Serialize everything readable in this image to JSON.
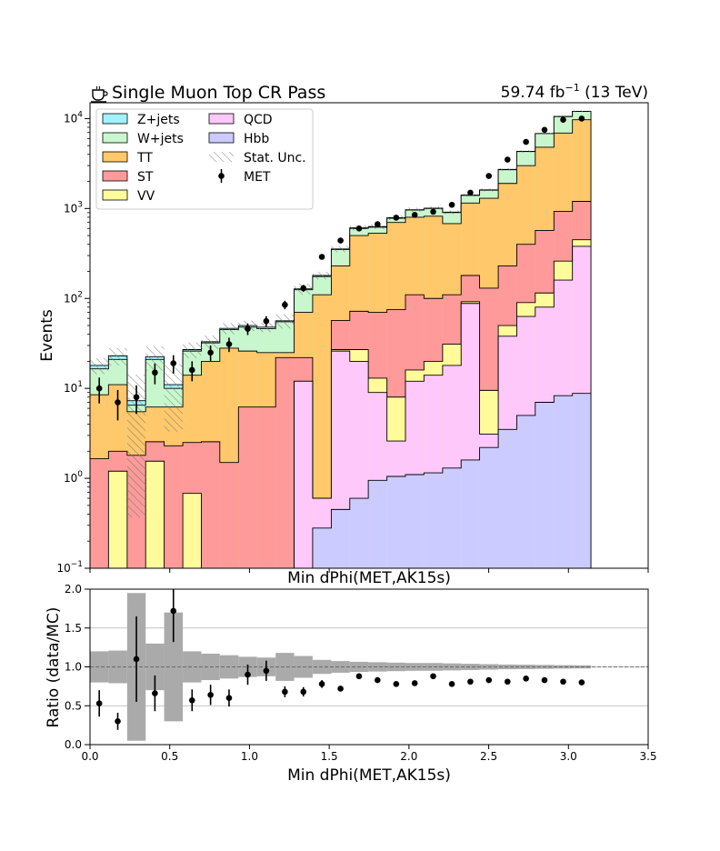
{
  "header": {
    "title_icon": "coffee-icon",
    "title": "Single Muon Top CR Pass",
    "lumi_value": "59.74 fb",
    "lumi_exp": "−1",
    "lumi_energy": "(13 TeV)"
  },
  "chart_data": [
    {
      "type": "area",
      "subtype": "stacked-histogram",
      "ylabel": "Events",
      "xlabel_top": "Min dPhi(MET,AK15s)",
      "yscale": "log",
      "ylim": [
        0.1,
        15000
      ],
      "xlim": [
        0.0,
        3.5
      ],
      "x_ticks": [
        0.0,
        0.5,
        1.0,
        1.5,
        2.0,
        2.5,
        3.0,
        3.5
      ],
      "y_ticks": [
        {
          "value": 0.1,
          "base": "10",
          "exp": "−1"
        },
        {
          "value": 1,
          "base": "10",
          "exp": "0"
        },
        {
          "value": 10,
          "base": "10",
          "exp": "1"
        },
        {
          "value": 100,
          "base": "10",
          "exp": "2"
        },
        {
          "value": 1000,
          "base": "10",
          "exp": "3"
        },
        {
          "value": 10000,
          "base": "10",
          "exp": "4"
        }
      ],
      "bin_edges": [
        0.0,
        0.116,
        0.233,
        0.349,
        0.465,
        0.582,
        0.698,
        0.814,
        0.931,
        1.047,
        1.164,
        1.28,
        1.396,
        1.513,
        1.629,
        1.745,
        1.862,
        1.978,
        2.094,
        2.211,
        2.327,
        2.443,
        2.56,
        2.676,
        2.792,
        2.909,
        3.025,
        3.141
      ],
      "legend_position": "top-left",
      "legend": [
        {
          "name": "Z+jets",
          "color": "#9ff3ff",
          "kind": "box"
        },
        {
          "name": "W+jets",
          "color": "#c9f7cd",
          "kind": "box"
        },
        {
          "name": "TT",
          "color": "#ffc86a",
          "kind": "box"
        },
        {
          "name": "ST",
          "color": "#ff9a9a",
          "kind": "box"
        },
        {
          "name": "VV",
          "color": "#fffb9a",
          "kind": "box"
        },
        {
          "name": "QCD",
          "color": "#ffc8fa",
          "kind": "box"
        },
        {
          "name": "Hbb",
          "color": "#cccbff",
          "kind": "box"
        },
        {
          "name": "Stat. Unc.",
          "color": "#777777",
          "kind": "hatch"
        },
        {
          "name": "MET",
          "color": "#000000",
          "kind": "marker"
        }
      ],
      "stack_cumulative": [
        {
          "name": "Hbb",
          "color": "#cccbff",
          "values": [
            0.001,
            0.001,
            0.001,
            0.001,
            0.001,
            0.001,
            0.001,
            0.001,
            0.001,
            0.001,
            0.001,
            0.001,
            0.28,
            0.45,
            0.6,
            0.95,
            1.05,
            1.1,
            1.15,
            1.3,
            1.6,
            2.2,
            3.5,
            5.0,
            7.0,
            8.3,
            8.8
          ]
        },
        {
          "name": "QCD",
          "color": "#ffc8fa",
          "values": [
            0.001,
            0.001,
            0.001,
            0.001,
            0.001,
            0.001,
            0.001,
            0.001,
            0.001,
            0.001,
            0.001,
            12.0,
            0.6,
            26.0,
            20.0,
            9.0,
            2.6,
            12.0,
            14.0,
            18.0,
            88.0,
            3.1,
            38.0,
            63.0,
            80.0,
            160.0,
            380.0
          ]
        },
        {
          "name": "VV",
          "color": "#fffb9a",
          "values": [
            0.001,
            1.2,
            0.001,
            1.55,
            0.001,
            0.68,
            0.001,
            0.001,
            0.001,
            0.001,
            0.001,
            12.0,
            0.6,
            27.0,
            27.0,
            13.0,
            8.0,
            16.0,
            20.0,
            31.0,
            92.0,
            9.5,
            50.0,
            90.0,
            115.0,
            260.0,
            450.0
          ]
        },
        {
          "name": "ST",
          "color": "#ff9a9a",
          "values": [
            1.65,
            2.0,
            1.8,
            2.55,
            2.3,
            2.5,
            2.55,
            1.5,
            6.2,
            6.2,
            22.0,
            22.0,
            0.6,
            57.0,
            72.0,
            70.0,
            75.0,
            110.0,
            100.0,
            110.0,
            180.0,
            130.0,
            230.0,
            400.0,
            570.0,
            930.0,
            1200.0
          ]
        },
        {
          "name": "TT",
          "color": "#ffc86a",
          "values": [
            8.5,
            11.0,
            5.5,
            6.2,
            6.2,
            14.0,
            20.0,
            28.0,
            26.0,
            25.0,
            25.0,
            70.0,
            110.0,
            230.0,
            500.0,
            530.0,
            700.0,
            800.0,
            820.0,
            680.0,
            1150.0,
            1300.0,
            1900.0,
            3000.0,
            4800.0,
            6900.0,
            9700.0
          ]
        },
        {
          "name": "W+jets",
          "color": "#c9f7cd",
          "values": [
            16.5,
            21.0,
            6.5,
            21.0,
            10.0,
            26.0,
            32.0,
            45.0,
            48.0,
            46.0,
            55.0,
            125.0,
            175.0,
            350.0,
            600.0,
            620.0,
            780.0,
            960.0,
            1000.0,
            900.0,
            1400.0,
            1600.0,
            2700.0,
            4300.0,
            6800.0,
            10500.0,
            12000.0
          ]
        },
        {
          "name": "Z+jets",
          "color": "#9ff3ff",
          "values": [
            18.0,
            23.0,
            7.3,
            22.5,
            11.0,
            27.0,
            33.0,
            46.5,
            50.0,
            48.0,
            56.5,
            128.0,
            180.0,
            355.0,
            610.0,
            630.0,
            790.0,
            970.0,
            1010.0,
            910.0,
            1410.0,
            1610.0,
            2720.0,
            4320.0,
            6830.0,
            10550.0,
            12050.0
          ]
        }
      ],
      "stat_unc_fraction": [
        0.2,
        0.22,
        0.95,
        0.3,
        0.7,
        0.2,
        0.17,
        0.14,
        0.13,
        0.12,
        0.18,
        0.14,
        0.1,
        0.08,
        0.07,
        0.06,
        0.06,
        0.05,
        0.05,
        0.05,
        0.04,
        0.04,
        0.03,
        0.03,
        0.02,
        0.02,
        0.02
      ],
      "data_series": {
        "name": "MET",
        "x": [
          0.058,
          0.174,
          0.291,
          0.407,
          0.523,
          0.64,
          0.756,
          0.872,
          0.989,
          1.105,
          1.222,
          1.338,
          1.454,
          1.571,
          1.687,
          1.803,
          1.92,
          2.036,
          2.152,
          2.269,
          2.385,
          2.501,
          2.618,
          2.734,
          2.85,
          2.967,
          3.083
        ],
        "y": [
          10,
          7,
          8,
          15,
          19,
          16,
          25,
          31,
          46,
          56,
          85,
          130,
          290,
          440,
          600,
          670,
          790,
          850,
          920,
          1100,
          1500,
          2300,
          3500,
          5500,
          7500,
          9700,
          10000
        ],
        "yerr": [
          3.2,
          2.6,
          2.8,
          3.9,
          4.4,
          4.0,
          5.0,
          5.6,
          6.8,
          7.5,
          9.2,
          11.4,
          17.0,
          21.0,
          24.5,
          25.9,
          28.1,
          29.2,
          30.3,
          33.2,
          38.7,
          48.0,
          59.2,
          74.2,
          86.6,
          98.5,
          100.0
        ]
      }
    },
    {
      "type": "scatter",
      "subtype": "ratio",
      "xlabel": "Min dPhi(MET,AK15s)",
      "ylabel": "Ratio (data/MC)",
      "xlim": [
        0.0,
        3.5
      ],
      "ylim": [
        0.0,
        2.0
      ],
      "x_ticks": [
        "0.0",
        "0.5",
        "1.0",
        "1.5",
        "2.0",
        "2.5",
        "3.0",
        "3.5"
      ],
      "y_ticks": [
        "0.0",
        "0.5",
        "1.0",
        "1.5",
        "2.0"
      ],
      "grid": "horizontal",
      "reference_line": 1.0,
      "x": [
        0.058,
        0.174,
        0.291,
        0.407,
        0.523,
        0.64,
        0.756,
        0.872,
        0.989,
        1.105,
        1.222,
        1.338,
        1.454,
        1.571,
        1.687,
        1.803,
        1.92,
        2.036,
        2.152,
        2.269,
        2.385,
        2.501,
        2.618,
        2.734,
        2.85,
        2.967,
        3.083
      ],
      "values": [
        0.53,
        0.3,
        1.1,
        0.66,
        1.72,
        0.57,
        0.64,
        0.6,
        0.9,
        0.95,
        0.68,
        0.68,
        0.78,
        0.72,
        0.88,
        0.83,
        0.78,
        0.79,
        0.88,
        0.78,
        0.81,
        0.83,
        0.81,
        0.85,
        0.83,
        0.81,
        0.8
      ],
      "yerr": [
        0.17,
        0.11,
        0.55,
        0.23,
        0.4,
        0.14,
        0.13,
        0.11,
        0.13,
        0.13,
        0.07,
        0.06,
        0.05,
        0.035,
        0.035,
        0.035,
        0.03,
        0.03,
        0.03,
        0.025,
        0.02,
        0.02,
        0.015,
        0.015,
        0.012,
        0.01,
        0.01
      ],
      "unc_band": [
        0.2,
        0.21,
        0.95,
        0.3,
        0.7,
        0.2,
        0.17,
        0.15,
        0.13,
        0.12,
        0.18,
        0.14,
        0.09,
        0.075,
        0.065,
        0.06,
        0.055,
        0.05,
        0.05,
        0.045,
        0.04,
        0.035,
        0.03,
        0.028,
        0.025,
        0.022,
        0.02
      ]
    }
  ]
}
